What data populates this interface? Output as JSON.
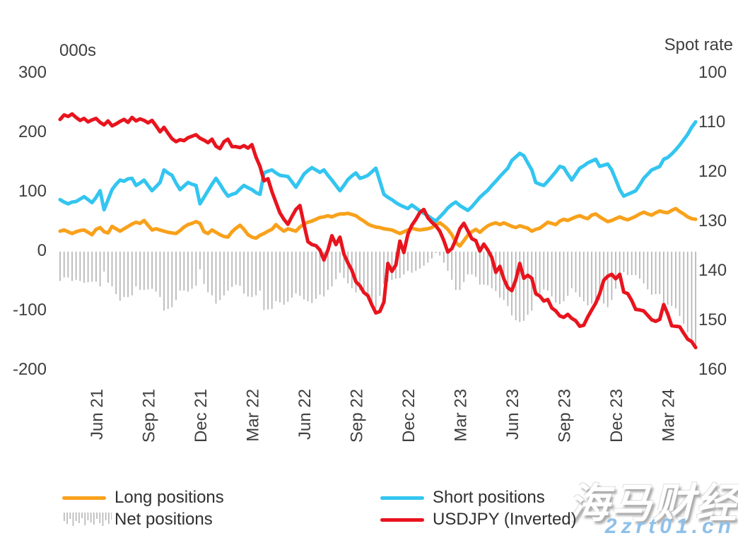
{
  "watermark": {
    "brand": "海马财经",
    "url": "2zrt01.cn"
  },
  "chart_data": {
    "type": "combo",
    "frequency": "weekly",
    "grid": false,
    "legend_position": "bottom",
    "left_axis": {
      "title": "000s",
      "ticks": [
        300,
        200,
        100,
        0,
        -100,
        -200
      ],
      "range": [
        -250,
        300
      ]
    },
    "right_axis": {
      "title": "Spot rate",
      "ticks": [
        100,
        110,
        120,
        130,
        140,
        150,
        160
      ],
      "range": [
        100,
        160
      ],
      "inverted": true
    },
    "x_ticks": [
      {
        "label": "Jun 21",
        "week": 9
      },
      {
        "label": "Sep 21",
        "week": 22
      },
      {
        "label": "Dec 21",
        "week": 35
      },
      {
        "label": "Mar 22",
        "week": 48
      },
      {
        "label": "Jun 22",
        "week": 61
      },
      {
        "label": "Sep 22",
        "week": 74
      },
      {
        "label": "Dec 22",
        "week": 87
      },
      {
        "label": "Mar 23",
        "week": 100
      },
      {
        "label": "Jun 23",
        "week": 113
      },
      {
        "label": "Sep 23",
        "week": 126
      },
      {
        "label": "Dec 23",
        "week": 139
      },
      {
        "label": "Mar 24",
        "week": 152
      }
    ],
    "series": [
      {
        "name": "Long positions",
        "type": "line",
        "axis": "left",
        "color": "#F9A11B",
        "values": [
          31,
          33,
          30,
          27,
          30,
          32,
          33,
          29,
          25,
          34,
          37,
          30,
          28,
          39,
          35,
          31,
          35,
          39,
          43,
          46,
          44,
          49,
          41,
          33,
          35,
          33,
          31,
          29,
          28,
          27,
          32,
          38,
          42,
          44,
          47,
          44,
          30,
          27,
          33,
          29,
          25,
          22,
          21,
          30,
          36,
          41,
          34,
          25,
          21,
          19,
          24,
          27,
          31,
          34,
          42,
          36,
          31,
          35,
          33,
          31,
          38,
          43,
          46,
          48,
          51,
          54,
          55,
          57,
          55,
          58,
          60,
          60,
          61,
          59,
          57,
          52,
          48,
          43,
          40,
          38,
          37,
          35,
          34,
          33,
          30,
          27,
          30,
          33,
          36,
          34,
          33,
          34,
          35,
          37,
          42,
          45,
          40,
          34,
          25,
          12,
          6,
          15,
          24,
          30,
          34,
          29,
          35,
          40,
          43,
          45,
          42,
          45,
          42,
          39,
          37,
          40,
          38,
          36,
          31,
          34,
          36,
          41,
          46,
          44,
          42,
          48,
          51,
          49,
          52,
          55,
          57,
          54,
          52,
          58,
          60,
          55,
          51,
          47,
          49,
          52,
          55,
          52,
          50,
          53,
          56,
          60,
          63,
          60,
          58,
          62,
          65,
          63,
          62,
          66,
          69,
          64,
          60,
          55,
          52,
          51
        ]
      },
      {
        "name": "Short positions",
        "type": "line",
        "axis": "left",
        "color": "#33C5F0",
        "values": [
          84,
          80,
          77,
          80,
          81,
          85,
          89,
          84,
          79,
          88,
          99,
          67,
          84,
          101,
          110,
          117,
          115,
          119,
          120,
          108,
          112,
          117,
          108,
          99,
          106,
          113,
          134,
          129,
          125,
          112,
          101,
          107,
          113,
          110,
          108,
          77,
          88,
          99,
          110,
          120,
          110,
          99,
          90,
          93,
          95,
          102,
          108,
          104,
          101,
          96,
          93,
          129,
          132,
          134,
          129,
          125,
          124,
          123,
          114,
          105,
          116,
          127,
          133,
          138,
          134,
          130,
          134,
          125,
          117,
          108,
          99,
          108,
          118,
          124,
          129,
          120,
          122,
          125,
          131,
          137,
          115,
          93,
          88,
          84,
          79,
          75,
          72,
          69,
          75,
          70,
          65,
          61,
          57,
          52,
          48,
          55,
          62,
          70,
          76,
          80,
          74,
          70,
          66,
          72,
          80,
          88,
          94,
          100,
          108,
          115,
          123,
          130,
          137,
          150,
          156,
          162,
          158,
          146,
          134,
          113,
          110,
          108,
          115,
          123,
          131,
          140,
          138,
          127,
          117,
          127,
          137,
          141,
          146,
          149,
          152,
          140,
          142,
          144,
          134,
          118,
          101,
          90,
          93,
          96,
          99,
          109,
          120,
          127,
          134,
          137,
          140,
          152,
          155,
          161,
          168,
          176,
          185,
          194,
          206,
          215
        ]
      },
      {
        "name": "Net positions",
        "type": "bar",
        "axis": "left",
        "color": "#B8B8B8",
        "values": [
          -53,
          -47,
          -47,
          -53,
          -51,
          -53,
          -56,
          -55,
          -54,
          -54,
          -62,
          -37,
          -56,
          -62,
          -75,
          -86,
          -80,
          -80,
          -77,
          -62,
          -68,
          -68,
          -67,
          -66,
          -71,
          -80,
          -103,
          -100,
          -97,
          -85,
          -69,
          -69,
          -71,
          -66,
          -61,
          -33,
          -58,
          -72,
          -77,
          -91,
          -85,
          -77,
          -69,
          -63,
          -59,
          -61,
          -74,
          -79,
          -80,
          -77,
          -69,
          -102,
          -101,
          -100,
          -87,
          -89,
          -93,
          -88,
          -81,
          -74,
          -78,
          -84,
          -87,
          -90,
          -83,
          -76,
          -79,
          -68,
          -62,
          -50,
          -39,
          -48,
          -57,
          -65,
          -72,
          -68,
          -74,
          -82,
          -91,
          -99,
          -78,
          -58,
          -54,
          -51,
          -49,
          -48,
          -42,
          -36,
          -39,
          -36,
          -32,
          -27,
          -22,
          -15,
          -6,
          -10,
          -22,
          -36,
          -51,
          -68,
          -68,
          -55,
          -42,
          -42,
          -46,
          -59,
          -59,
          -60,
          -65,
          -70,
          -81,
          -85,
          -95,
          -111,
          -119,
          -122,
          -120,
          -110,
          -103,
          -79,
          -74,
          -67,
          -69,
          -79,
          -89,
          -92,
          -87,
          -78,
          -65,
          -72,
          -80,
          -87,
          -94,
          -91,
          -92,
          -85,
          -91,
          -97,
          -85,
          -66,
          -46,
          -38,
          -43,
          -43,
          -43,
          -49,
          -57,
          -67,
          -76,
          -75,
          -75,
          -89,
          -93,
          -95,
          -99,
          -112,
          -125,
          -139,
          -154,
          -164
        ]
      },
      {
        "name": "USDJPY (Inverted)",
        "type": "line",
        "axis": "right",
        "color": "#E8141E",
        "values": [
          109.7,
          108.8,
          109.1,
          108.6,
          109.3,
          109.9,
          109.5,
          110.2,
          109.8,
          109.5,
          110.3,
          110.8,
          110.0,
          111.0,
          110.6,
          110.1,
          109.7,
          110.3,
          109.3,
          110.0,
          109.6,
          109.9,
          110.4,
          109.9,
          111.0,
          112.2,
          111.3,
          112.5,
          113.6,
          114.2,
          113.8,
          114.0,
          113.4,
          113.1,
          112.8,
          113.5,
          113.9,
          114.4,
          113.7,
          115.1,
          115.6,
          114.2,
          113.7,
          115.2,
          115.2,
          115.4,
          115.0,
          115.5,
          114.8,
          117.3,
          119.2,
          122.1,
          121.7,
          124.3,
          126.5,
          128.6,
          129.9,
          130.9,
          129.3,
          127.9,
          127.1,
          130.9,
          134.4,
          135.0,
          135.2,
          136.1,
          138.1,
          136.1,
          133.2,
          135.0,
          133.5,
          136.9,
          138.7,
          140.2,
          142.5,
          143.3,
          144.7,
          145.3,
          147.2,
          148.8,
          148.5,
          146.6,
          138.8,
          140.4,
          139.1,
          134.3,
          136.6,
          132.9,
          131.1,
          129.9,
          128.5,
          127.9,
          129.6,
          130.5,
          131.2,
          132.3,
          134.2,
          136.5,
          135.8,
          134.0,
          131.8,
          130.7,
          132.2,
          133.8,
          134.2,
          136.3,
          134.9,
          136.1,
          137.6,
          140.6,
          139.4,
          141.9,
          143.7,
          144.3,
          142.1,
          138.8,
          141.8,
          141.2,
          141.8,
          144.9,
          145.4,
          146.4,
          146.1,
          147.8,
          148.4,
          149.4,
          149.7,
          149.1,
          149.9,
          150.4,
          151.5,
          151.3,
          149.6,
          148.2,
          146.8,
          144.9,
          142.2,
          141.4,
          141.0,
          141.9,
          141.0,
          144.6,
          144.9,
          146.3,
          148.1,
          148.2,
          148.4,
          149.3,
          150.2,
          150.5,
          150.1,
          147.1,
          149.0,
          151.4,
          151.5,
          151.6,
          152.9,
          154.1,
          154.6,
          155.8
        ]
      }
    ]
  }
}
